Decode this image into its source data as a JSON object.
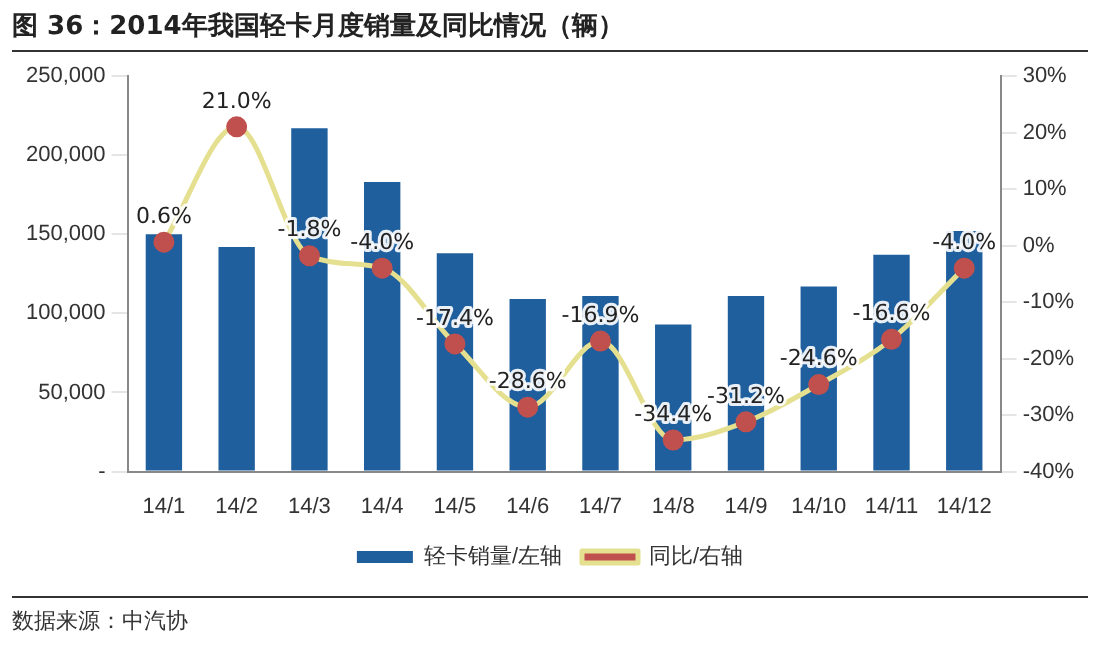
{
  "chart_data": {
    "type": "bar",
    "title": "图 36：2014年我国轻卡月度销量及同比情况（辆）",
    "annotations": [
      "数据来源：中汽协"
    ],
    "categories": [
      "14/1",
      "14/2",
      "14/3",
      "14/4",
      "14/5",
      "14/6",
      "14/7",
      "14/8",
      "14/9",
      "14/10",
      "14/11",
      "14/12"
    ],
    "series": [
      {
        "name": "轻卡销量/左轴",
        "color": "#1f5f9e",
        "values": [
          150000,
          142000,
          217000,
          183000,
          138000,
          109000,
          111000,
          93000,
          111000,
          117000,
          137000,
          152000
        ]
      },
      {
        "name": "同比/右轴",
        "type": "line",
        "axis": "y2",
        "color": "#c0504d",
        "values": [
          0.6,
          21.0,
          -1.8,
          -4.0,
          -17.4,
          -28.6,
          -16.9,
          -34.4,
          -31.2,
          -24.6,
          -16.6,
          -4.0
        ],
        "value_labels": [
          "0.6%",
          "21.0%",
          "-1.8%",
          "-4.0%",
          "-17.4%",
          "-28.6%",
          "-16.9%",
          "-34.4%",
          "-31.2%",
          "-24.6%",
          "-16.6%",
          "-4.0%"
        ]
      }
    ],
    "ylim": [
      0,
      250000
    ],
    "yticks": [
      {
        "value": 0,
        "label": "-"
      },
      {
        "value": 50000,
        "label": "50,000"
      },
      {
        "value": 100000,
        "label": "100,000"
      },
      {
        "value": 150000,
        "label": "150,000"
      },
      {
        "value": 200000,
        "label": "200,000"
      },
      {
        "value": 250000,
        "label": "250,000"
      }
    ],
    "y2lim": [
      -40,
      30
    ],
    "y2ticks": [
      {
        "value": -40,
        "label": "-40%"
      },
      {
        "value": -30,
        "label": "-30%"
      },
      {
        "value": -20,
        "label": "-20%"
      },
      {
        "value": -10,
        "label": "-10%"
      },
      {
        "value": 0,
        "label": "0%"
      },
      {
        "value": 10,
        "label": "10%"
      },
      {
        "value": 20,
        "label": "20%"
      },
      {
        "value": 30,
        "label": "30%"
      }
    ],
    "grid": false,
    "legend": "bottom",
    "marker": "circle",
    "line_style": "solid"
  }
}
